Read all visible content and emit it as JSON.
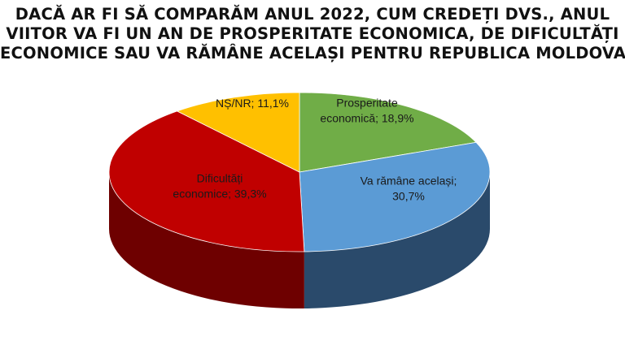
{
  "chart_data": {
    "type": "pie",
    "title_lines": [
      "DACĂ AR FI SĂ COMPARĂM ANUL 2022, CUM CREDEȚI DVS., ANUL",
      "VIITOR VA FI UN AN DE PROSPERITATE ECONOMICA, DE DIFICULTĂȚI",
      "ECONOMICE SAU VA RĂMÂNE ACELAȘI PENTRU REPUBLICA MOLDOVA?"
    ],
    "slices": [
      {
        "label_lines": [
          "Prosperitate",
          "economică; 18,9%"
        ],
        "value": 18.9,
        "color": "#70ad47",
        "side_color": "#3f6b24"
      },
      {
        "label_lines": [
          "Va rămâne același;",
          "30,7%"
        ],
        "value": 30.7,
        "color": "#5b9bd5",
        "side_color": "#2a4a6b"
      },
      {
        "label_lines": [
          "Dificultăți",
          "economice; 39,3%"
        ],
        "value": 39.3,
        "color": "#c00000",
        "side_color": "#6e0000"
      },
      {
        "label_lines": [
          "NȘ/NR; 11,1%"
        ],
        "value": 11.1,
        "color": "#ffc000",
        "side_color": "#9a7300"
      }
    ]
  }
}
